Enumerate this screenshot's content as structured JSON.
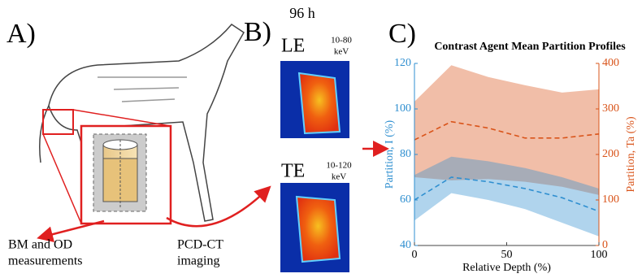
{
  "panels": {
    "a": {
      "label": "A)",
      "notes": [
        "BM and OD",
        "measurements",
        "PCD-CT",
        "imaging"
      ]
    },
    "b": {
      "label": "B)",
      "time": "96 h",
      "images": [
        {
          "name": "LE",
          "range": "10-80",
          "unit": "keV"
        },
        {
          "name": "TE",
          "range": "10-120",
          "unit": "keV"
        }
      ]
    },
    "c": {
      "label": "C)"
    }
  },
  "chart_data": {
    "type": "line",
    "title": "Contrast Agent Mean Partition Profiles",
    "x": [
      0,
      20,
      40,
      60,
      80,
      100
    ],
    "xlim": [
      0,
      100
    ],
    "xticks": [
      0,
      50,
      100
    ],
    "xlabel": "Relative Depth (%)",
    "ylabel": "Partition, I (%)",
    "ylim": [
      40,
      120
    ],
    "yticks": [
      40,
      60,
      80,
      100,
      120
    ],
    "ycolor": "#2f8fd0",
    "y2label": "Partition, Ta (%)",
    "y2lim": [
      0,
      400
    ],
    "y2ticks": [
      0,
      100,
      200,
      300,
      400
    ],
    "y2color": "#d9541a",
    "series": [
      {
        "color": "#d9541a",
        "axis": "y2",
        "values": [
          232,
          272,
          258,
          236,
          236,
          245
        ],
        "upper": [
          316,
          396,
          370,
          352,
          336,
          343
        ],
        "lower": [
          150,
          143,
          146,
          140,
          129,
          111
        ]
      },
      {
        "color": "#2f8fd0",
        "axis": "y",
        "values": [
          60,
          70,
          68,
          65,
          61,
          55
        ],
        "upper": [
          71,
          79,
          77,
          74,
          70,
          65
        ],
        "lower": [
          51,
          63,
          60,
          56,
          50,
          44
        ]
      }
    ]
  }
}
